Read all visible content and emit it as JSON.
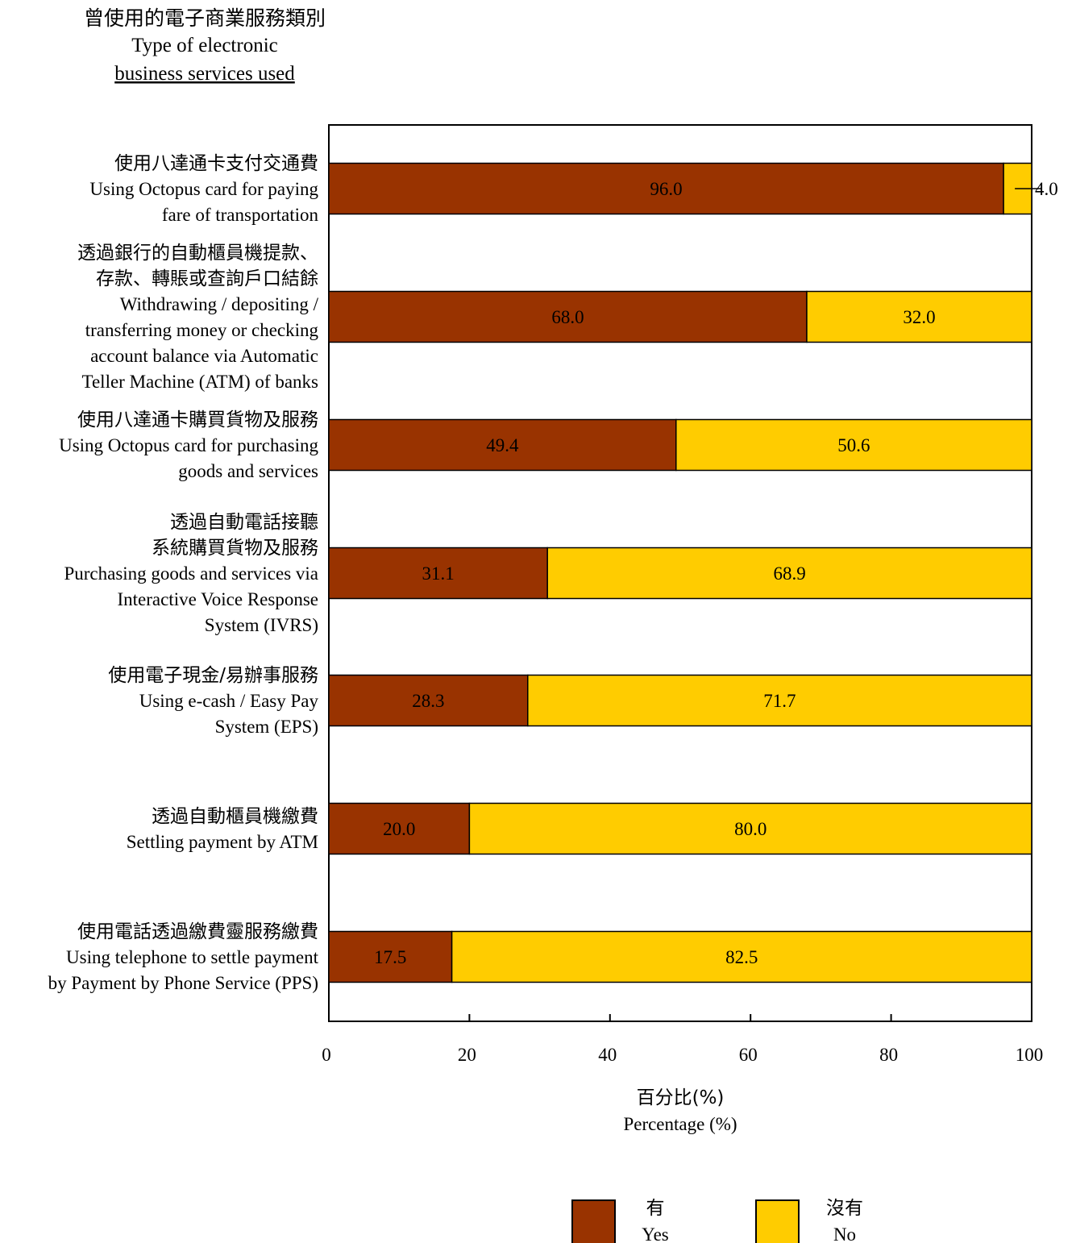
{
  "chart_data": {
    "type": "bar",
    "orientation": "horizontal",
    "stacked": true,
    "title_lines": [
      "曾使用的電子商業服務類別",
      "Type of electronic",
      "business services used"
    ],
    "xlabel_lines": [
      "百分比(%)",
      "Percentage (%)"
    ],
    "xlim": [
      0,
      100
    ],
    "xticks": [
      0,
      20,
      40,
      60,
      80,
      100
    ],
    "xtick_labels": [
      "0",
      "20",
      "40",
      "60",
      "80",
      "100"
    ],
    "grid": false,
    "legend_position": "bottom-right",
    "categories": [
      [
        "使用八達通卡支付交通費",
        "Using Octopus card for paying",
        "fare of transportation"
      ],
      [
        "透過銀行的自動櫃員機提款、",
        "存款、轉賬或查詢戶口結餘",
        "Withdrawing / depositing /",
        "transferring money or checking",
        "account balance via Automatic",
        "Teller Machine (ATM) of banks"
      ],
      [
        "使用八達通卡購買貨物及服務",
        "Using Octopus card for purchasing",
        "goods and services"
      ],
      [
        "透過自動電話接聽",
        "系統購買貨物及服務",
        "Purchasing goods and services via",
        "Interactive Voice Response",
        "System (IVRS)"
      ],
      [
        "使用電子現金/易辦事服務",
        "Using e-cash / Easy Pay",
        "System (EPS)"
      ],
      [
        "透過自動櫃員機繳費",
        "Settling payment by ATM"
      ],
      [
        "使用電話透過繳費靈服務繳費",
        "Using telephone to settle payment",
        "by Payment by Phone Service (PPS)"
      ]
    ],
    "series": [
      {
        "name": "有 Yes",
        "legend_lines": [
          "有",
          "Yes"
        ],
        "color": "#993300",
        "values": [
          96.0,
          68.0,
          49.4,
          31.1,
          28.3,
          20.0,
          17.5
        ],
        "labels": [
          "96.0",
          "68.0",
          "49.4",
          "31.1",
          "28.3",
          "20.0",
          "17.5"
        ]
      },
      {
        "name": "沒有 No",
        "legend_lines": [
          "沒有",
          "No"
        ],
        "color": "#FFCC00",
        "values": [
          4.0,
          32.0,
          50.6,
          68.9,
          71.7,
          80.0,
          82.5
        ],
        "labels": [
          "4.0",
          "32.0",
          "50.6",
          "68.9",
          "71.7",
          "80.0",
          "82.5"
        ]
      }
    ]
  }
}
